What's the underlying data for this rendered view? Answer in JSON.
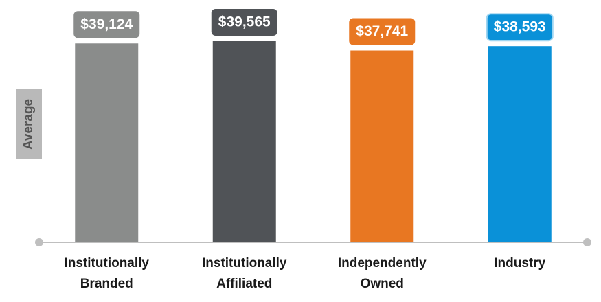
{
  "chart_data": {
    "type": "bar",
    "y_label": "Average",
    "categories": [
      "Institutionally Branded",
      "Institutionally Affiliated",
      "Independently Owned",
      "Industry"
    ],
    "values": [
      39124,
      39565,
      37741,
      38593
    ],
    "value_labels": [
      "$39,124",
      "$39,565",
      "$37,741",
      "$38,593"
    ],
    "colors": [
      "#8a8c8b",
      "#505357",
      "#e87722",
      "#0a91d8"
    ]
  }
}
